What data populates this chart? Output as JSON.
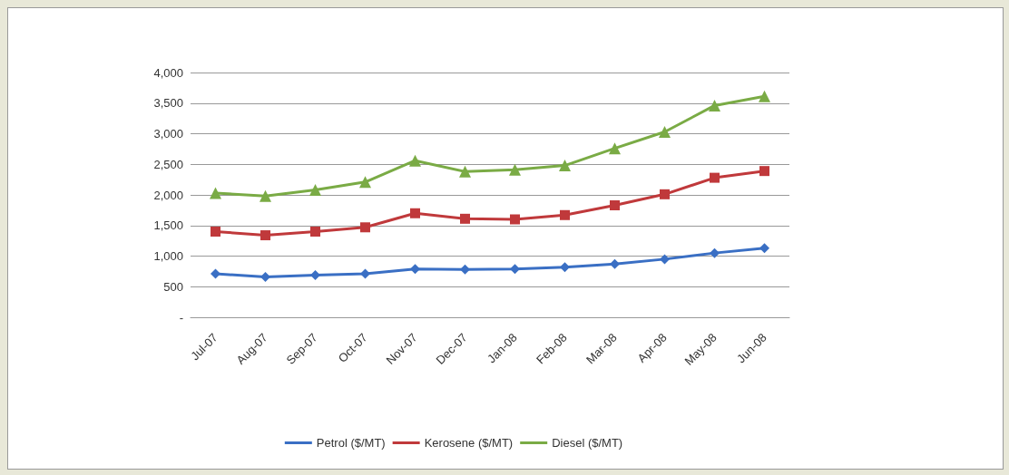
{
  "chart_data": {
    "type": "line",
    "categories": [
      "Jul-07",
      "Aug-07",
      "Sep-07",
      "Oct-07",
      "Nov-07",
      "Dec-07",
      "Jan-08",
      "Feb-08",
      "Mar-08",
      "Apr-08",
      "May-08",
      "Jun-08"
    ],
    "series": [
      {
        "name": "Petrol ($/MT)",
        "color": "#3a6fc4",
        "marker": "diamond",
        "values": [
          710,
          660,
          690,
          710,
          790,
          780,
          790,
          820,
          870,
          950,
          1050,
          1130
        ]
      },
      {
        "name": "Kerosene ($/MT)",
        "color": "#c0393b",
        "marker": "square",
        "values": [
          1400,
          1340,
          1400,
          1470,
          1700,
          1610,
          1600,
          1670,
          1830,
          2010,
          2280,
          2390
        ]
      },
      {
        "name": "Diesel ($/MT)",
        "color": "#7aab45",
        "marker": "triangle",
        "values": [
          2030,
          1980,
          2080,
          2210,
          2560,
          2380,
          2410,
          2480,
          2760,
          3030,
          3460,
          3610
        ]
      }
    ],
    "ylim": [
      0,
      4000
    ],
    "yticks": [
      {
        "value": 0,
        "label": "-"
      },
      500,
      {
        "value": 1000,
        "label": "1,000"
      },
      {
        "value": 1500,
        "label": "1,500"
      },
      {
        "value": 2000,
        "label": "2,000"
      },
      {
        "value": 2500,
        "label": "2,500"
      },
      {
        "value": 3000,
        "label": "3,000"
      },
      {
        "value": 3500,
        "label": "3,500"
      },
      {
        "value": 4000,
        "label": "4,000"
      }
    ],
    "grid": "y",
    "legend": "bottom",
    "line_style": "solid"
  }
}
